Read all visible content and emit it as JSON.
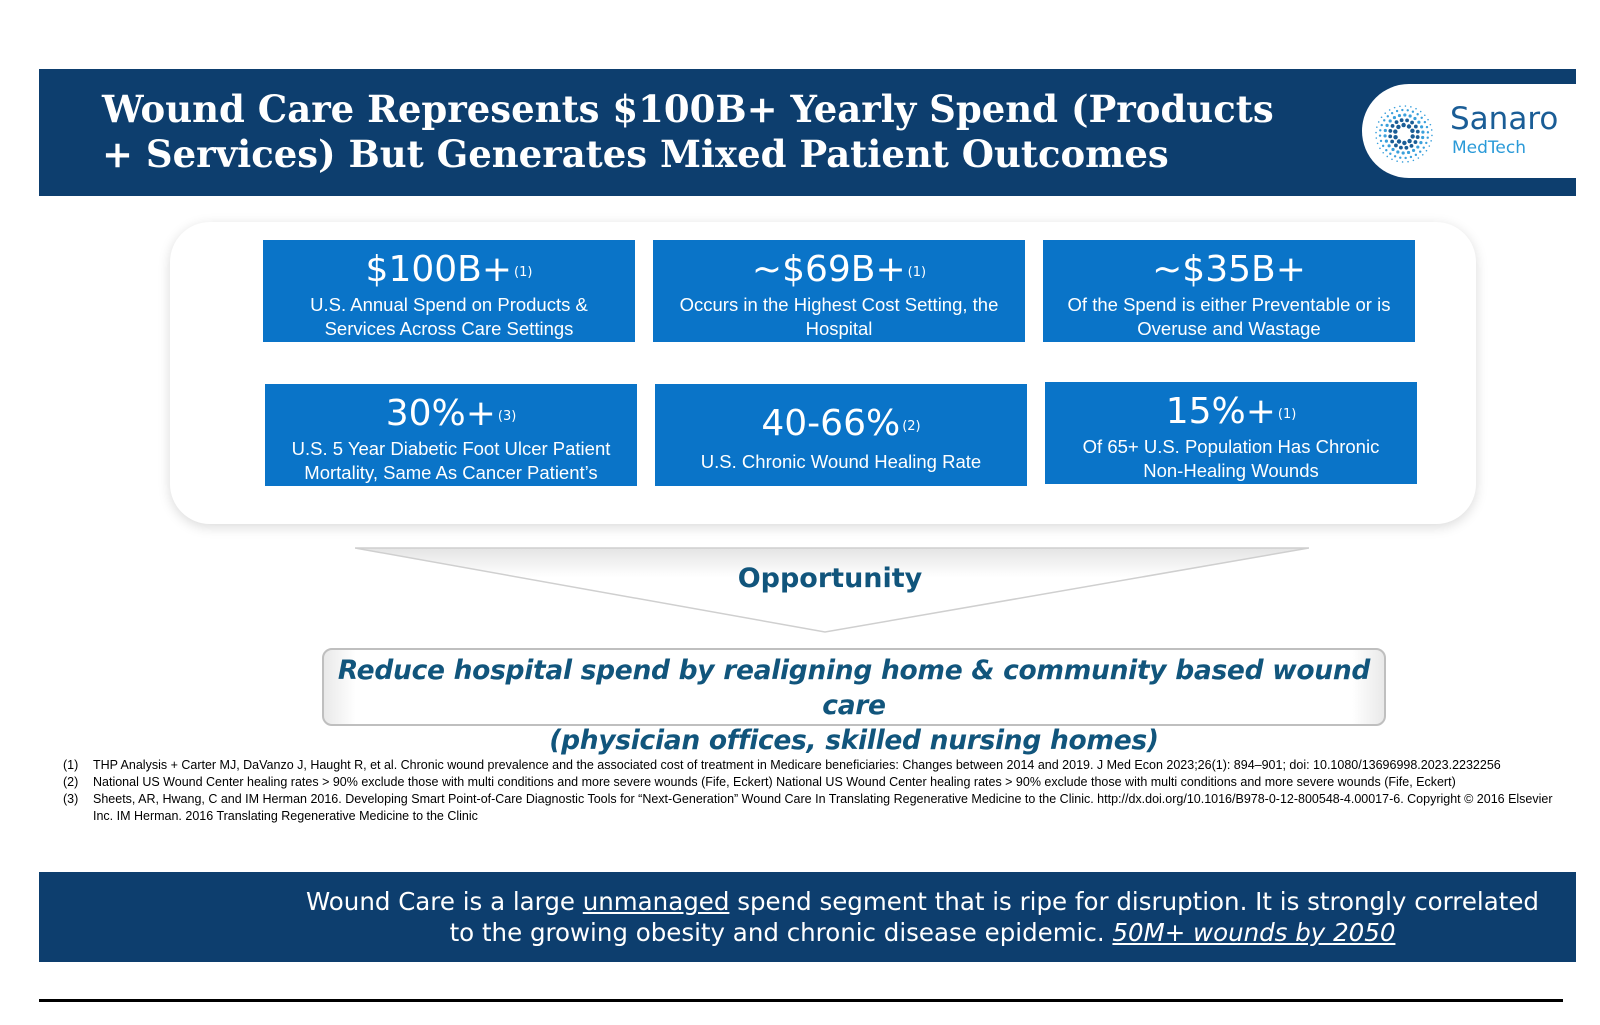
{
  "header": {
    "title_line1": "Wound Care Represents $100B+ Yearly Spend (Products",
    "title_line2": "+ Services) But Generates Mixed Patient Outcomes"
  },
  "logo": {
    "name": "Sanaro",
    "sub": "MedTech"
  },
  "stats": [
    {
      "value": "$100B+",
      "ref": "(1)",
      "desc_line1": "U.S. Annual Spend on Products &",
      "desc_line2": "Services Across Care Settings"
    },
    {
      "value": "~$69B+",
      "ref": "(1)",
      "desc_line1": "Occurs in the  Highest Cost Setting, the",
      "desc_line2": "Hospital"
    },
    {
      "value": "~$35B+",
      "ref": "",
      "desc_line1": "Of the Spend is either Preventable or is",
      "desc_line2": "Overuse and Wastage"
    },
    {
      "value": "30%+",
      "ref": "(3)",
      "desc_line1": "U.S. 5 Year Diabetic Foot Ulcer Patient",
      "desc_line2": "Mortality, Same As Cancer Patient’s"
    },
    {
      "value": "40-66%",
      "ref": "(2)",
      "desc_line1": "U.S. Chronic Wound Healing Rate",
      "desc_line2": ""
    },
    {
      "value": "15%+",
      "ref": "(1)",
      "desc_line1": "Of 65+ U.S. Population Has Chronic",
      "desc_line2": "Non-Healing Wounds"
    }
  ],
  "opportunity": {
    "label": "Opportunity",
    "callout_line1": "Reduce hospital spend by realigning home & community based wound care",
    "callout_line2": "(physician offices, skilled nursing homes)"
  },
  "footnotes": [
    {
      "num": "(1)",
      "text": "THP Analysis + Carter MJ, DaVanzo J, Haught R, et al. Chronic wound prevalence and the associated cost of treatment in Medicare beneficiaries: Changes between 2014 and 2019. J Med Econ 2023;26(1): 894–901; doi: 10.1080/13696998.2023.2232256"
    },
    {
      "num": "(2)",
      "text": "National US Wound Center healing rates > 90%  exclude those with multi conditions and more severe wounds (Fife, Eckert) National US Wound Center healing rates > 90%  exclude those with multi conditions and more severe wounds (Fife, Eckert)"
    },
    {
      "num": "(3)",
      "text": " Sheets, AR, Hwang, C and IM Herman 2016. Developing Smart Point-of-Care Diagnostic Tools for “Next-Generation” Wound Care In Translating Regenerative Medicine to the Clinic. http://dx.doi.org/10.1016/B978-0-12-800548-4.00017-6. Copyright © 2016 Elsevier Inc. IM Herman. 2016 Translating Regenerative Medicine to the Clinic"
    }
  ],
  "banner": {
    "line1_pre": "Wound Care is a large ",
    "line1_underline": "unmanaged",
    "line1_post": " spend segment that is ripe for disruption. It is strongly correlated",
    "line2_pre": "to the growing obesity and chronic disease epidemic. ",
    "line2_emph": "50M+ wounds by 2050"
  },
  "colors": {
    "navy": "#0d3e6e",
    "stat_blue": "#0a74c8",
    "teal_text": "#11557c",
    "logo_blue": "#1a5d96"
  }
}
